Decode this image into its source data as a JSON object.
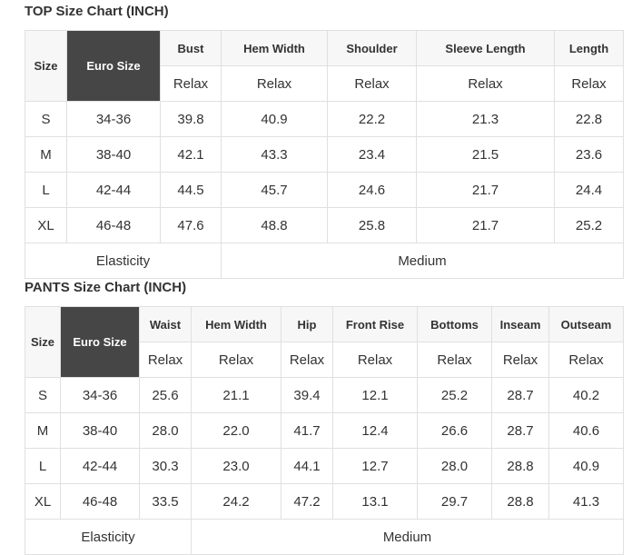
{
  "top": {
    "title": "TOP Size Chart (INCH)",
    "headers": [
      "Size",
      "Euro Size",
      "Bust",
      "Hem Width",
      "Shoulder",
      "Sleeve Length",
      "Length"
    ],
    "subheader": "Relax",
    "rows": [
      [
        "S",
        "34-36",
        "39.8",
        "40.9",
        "22.2",
        "21.3",
        "22.8"
      ],
      [
        "M",
        "38-40",
        "42.1",
        "43.3",
        "23.4",
        "21.5",
        "23.6"
      ],
      [
        "L",
        "42-44",
        "44.5",
        "45.7",
        "24.6",
        "21.7",
        "24.4"
      ],
      [
        "XL",
        "46-48",
        "47.6",
        "48.8",
        "25.8",
        "21.7",
        "25.2"
      ]
    ],
    "elasticity_label": "Elasticity",
    "elasticity_value": "Medium"
  },
  "pants": {
    "title": "PANTS Size Chart (INCH)",
    "headers": [
      "Size",
      "Euro Size",
      "Waist",
      "Hem Width",
      "Hip",
      "Front Rise",
      "Bottoms",
      "Inseam",
      "Outseam"
    ],
    "subheader": "Relax",
    "rows": [
      [
        "S",
        "34-36",
        "25.6",
        "21.1",
        "39.4",
        "12.1",
        "25.2",
        "28.7",
        "40.2"
      ],
      [
        "M",
        "38-40",
        "28.0",
        "22.0",
        "41.7",
        "12.4",
        "26.6",
        "28.7",
        "40.6"
      ],
      [
        "L",
        "42-44",
        "30.3",
        "23.0",
        "44.1",
        "12.7",
        "28.0",
        "28.8",
        "40.9"
      ],
      [
        "XL",
        "46-48",
        "33.5",
        "24.2",
        "47.2",
        "13.1",
        "29.7",
        "28.8",
        "41.3"
      ]
    ],
    "elasticity_label": "Elasticity",
    "elasticity_value": "Medium"
  },
  "colors": {
    "euro_header_bg": "#464646",
    "header_bg": "#f7f7f7",
    "border": "#e0e0e0"
  }
}
